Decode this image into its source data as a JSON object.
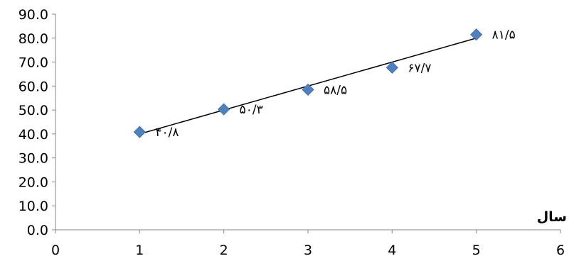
{
  "chart_data": {
    "type": "scatter",
    "title": "",
    "xlabel": "سال",
    "ylabel": "",
    "xlim": [
      0,
      6
    ],
    "ylim": [
      0,
      90
    ],
    "xticks": [
      "0",
      "1",
      "2",
      "3",
      "4",
      "5",
      "6"
    ],
    "yticks": [
      "0.0",
      "10.0",
      "20.0",
      "30.0",
      "40.0",
      "50.0",
      "60.0",
      "70.0",
      "80.0",
      "90.0"
    ],
    "grid": false,
    "legend": "none",
    "series": [
      {
        "marker": "diamond",
        "color": "#4f81bd",
        "x": [
          1,
          2,
          3,
          4,
          5
        ],
        "y": [
          40.8,
          50.3,
          58.5,
          67.7,
          81.5
        ],
        "labels": [
          "۴۰/۸",
          "۵۰/۳",
          "۵۸/۵",
          "۶۷/۷",
          "۸۱/۵"
        ]
      }
    ],
    "trendline": {
      "type": "linear",
      "color": "#000000",
      "x": [
        1,
        5
      ],
      "y": [
        40.0,
        80.0
      ]
    }
  }
}
